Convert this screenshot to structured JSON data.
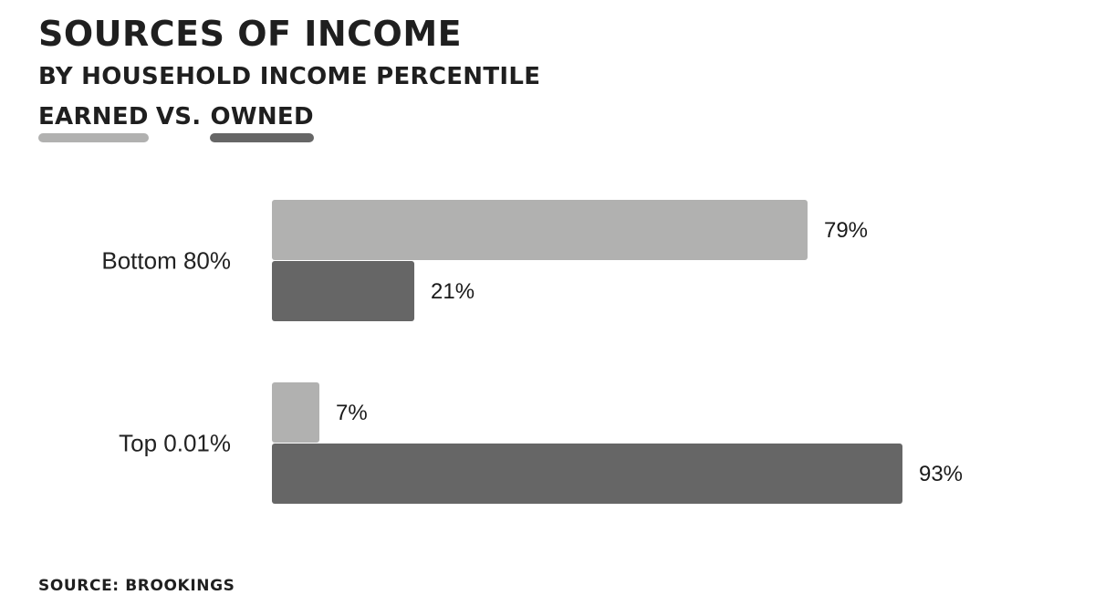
{
  "title": "SOURCES OF INCOME",
  "subtitle": "BY HOUSEHOLD INCOME PERCENTILE",
  "legend": {
    "separator": "VS."
  },
  "source": "SOURCE: BROOKINGS",
  "colors": {
    "earned": "#b1b1b0",
    "owned": "#666666"
  },
  "chart_data": {
    "type": "bar",
    "orientation": "horizontal",
    "title": "SOURCES OF INCOME",
    "subtitle": "BY HOUSEHOLD INCOME PERCENTILE",
    "categories": [
      "Bottom 80%",
      "Top 0.01%"
    ],
    "series": [
      {
        "name": "EARNED",
        "values": [
          79,
          7
        ],
        "labels": [
          "79%",
          "7%"
        ]
      },
      {
        "name": "OWNED",
        "values": [
          21,
          93
        ],
        "labels": [
          "21%",
          "93%"
        ]
      }
    ],
    "xlim": [
      0,
      100
    ],
    "grid": false,
    "legend": "top-left"
  }
}
